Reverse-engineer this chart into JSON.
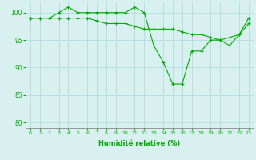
{
  "line1": {
    "x": [
      0,
      1,
      2,
      3,
      4,
      5,
      6,
      7,
      8,
      9,
      10,
      11,
      12,
      13,
      14,
      15,
      16,
      17,
      18,
      19,
      20,
      21,
      22,
      23
    ],
    "y": [
      99,
      99,
      99,
      100,
      101,
      100,
      100,
      100,
      100,
      100,
      100,
      101,
      100,
      94,
      91,
      87,
      87,
      93,
      93,
      95,
      95,
      94,
      96,
      99
    ]
  },
  "line2": {
    "x": [
      0,
      1,
      2,
      3,
      4,
      5,
      6,
      7,
      8,
      9,
      10,
      11,
      12,
      13,
      14,
      15,
      16,
      17,
      18,
      19,
      20,
      21,
      22,
      23
    ],
    "y": [
      99,
      99,
      99,
      99,
      99,
      99,
      99,
      98.5,
      98,
      98,
      98,
      97.5,
      97,
      97,
      97,
      97,
      96.5,
      96,
      96,
      95.5,
      95,
      95.5,
      96,
      98
    ]
  },
  "line_color": "#00aa00",
  "background_color": "#d8f0f0",
  "grid_color": "#b0dede",
  "xlabel": "Humidité relative (%)",
  "ylim": [
    79,
    102
  ],
  "yticks": [
    80,
    85,
    90,
    95,
    100
  ],
  "xticks": [
    0,
    1,
    2,
    3,
    4,
    5,
    6,
    7,
    8,
    9,
    10,
    11,
    12,
    13,
    14,
    15,
    16,
    17,
    18,
    19,
    20,
    21,
    22,
    23
  ],
  "marker": "+"
}
